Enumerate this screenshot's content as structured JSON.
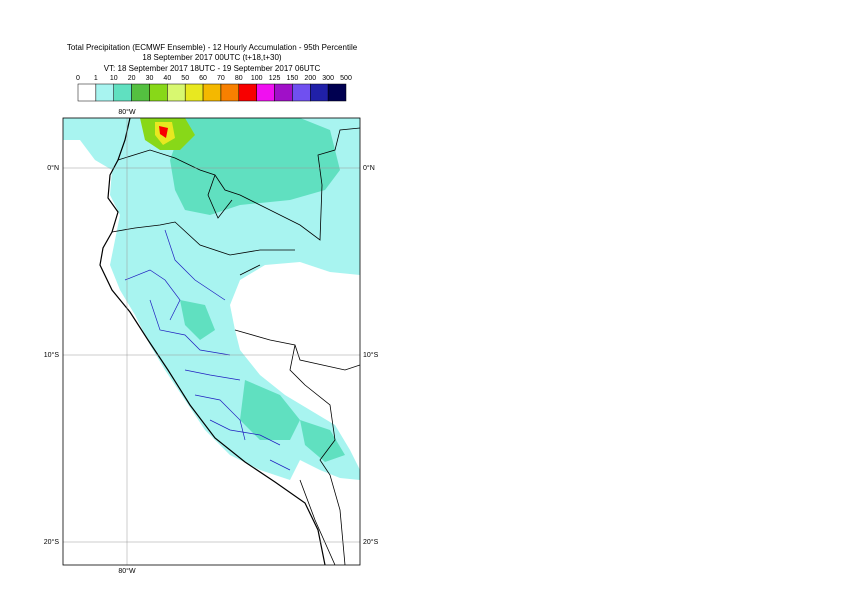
{
  "header": {
    "title": "Total Precipitation (ECMWF Ensemble) - 12 Hourly Accumulation - 95th Percentile",
    "base_time": "18 September 2017 00UTC (t+18,t+30)",
    "valid_time": "VT: 18 September 2017 18UTC - 19 September 2017 06UTC"
  },
  "legend": {
    "bounds": [
      "0",
      "1",
      "10",
      "20",
      "30",
      "40",
      "50",
      "60",
      "70",
      "80",
      "100",
      "125",
      "150",
      "200",
      "300",
      "500"
    ],
    "colors": [
      "#ffffff",
      "#a8f4f0",
      "#60e0c0",
      "#54c040",
      "#88d818",
      "#d8f870",
      "#e8e820",
      "#f4b800",
      "#f88000",
      "#f80000",
      "#f010f0",
      "#a010c8",
      "#7050f0",
      "#2020a8",
      "#000050"
    ]
  },
  "map": {
    "lon_labels": [
      "80°W"
    ],
    "lat_labels": [
      "0°N",
      "10°S",
      "20°S"
    ]
  }
}
